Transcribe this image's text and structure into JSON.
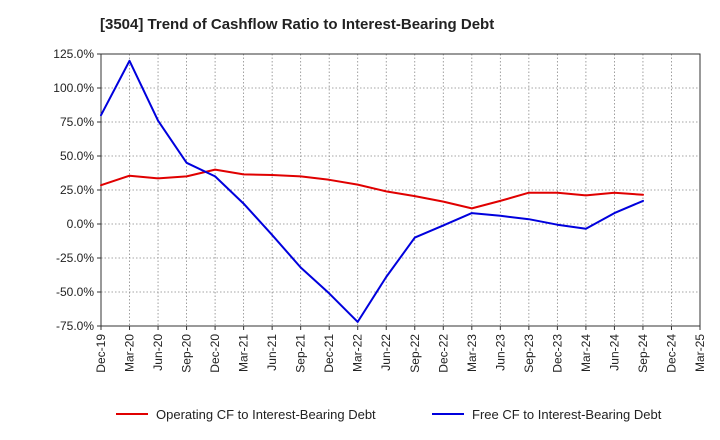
{
  "chart_data": {
    "type": "line",
    "title": "[3504]  Trend of Cashflow Ratio to Interest-Bearing Debt",
    "xlabel": "",
    "ylabel": "",
    "x": [
      "Dec-19",
      "Mar-20",
      "Jun-20",
      "Sep-20",
      "Dec-20",
      "Mar-21",
      "Jun-21",
      "Sep-21",
      "Dec-21",
      "Mar-22",
      "Jun-22",
      "Sep-22",
      "Dec-22",
      "Mar-23",
      "Jun-23",
      "Sep-23",
      "Dec-23",
      "Mar-24",
      "Jun-24",
      "Sep-24",
      "Dec-24",
      "Mar-25"
    ],
    "ylim": [
      -75,
      125
    ],
    "yticks": [
      125,
      100,
      75,
      50,
      25,
      0,
      -25,
      -50,
      -75
    ],
    "ytick_labels": [
      "125.0%",
      "100.0%",
      "75.0%",
      "50.0%",
      "25.0%",
      "0.0%",
      "-25.0%",
      "-50.0%",
      "-75.0%"
    ],
    "grid": true,
    "legend_position": "bottom",
    "series": [
      {
        "name": "Operating CF to Interest-Bearing Debt",
        "color": "#e00000",
        "values": [
          28.5,
          35.5,
          33.5,
          35.0,
          40.0,
          36.5,
          36.0,
          35.0,
          32.5,
          29.0,
          24.0,
          20.5,
          16.5,
          11.5,
          17.0,
          23.0,
          23.0,
          21.0,
          23.0,
          21.5,
          null,
          null
        ]
      },
      {
        "name": "Free CF to Interest-Bearing Debt",
        "color": "#0000dd",
        "values": [
          80.0,
          120.0,
          76.0,
          45.0,
          35.0,
          15.0,
          -8.0,
          -32.0,
          -51.0,
          -72.0,
          -39.0,
          -10.0,
          -1.0,
          8.0,
          6.0,
          3.5,
          -0.5,
          -3.5,
          8.0,
          17.0,
          null,
          null
        ]
      }
    ]
  }
}
